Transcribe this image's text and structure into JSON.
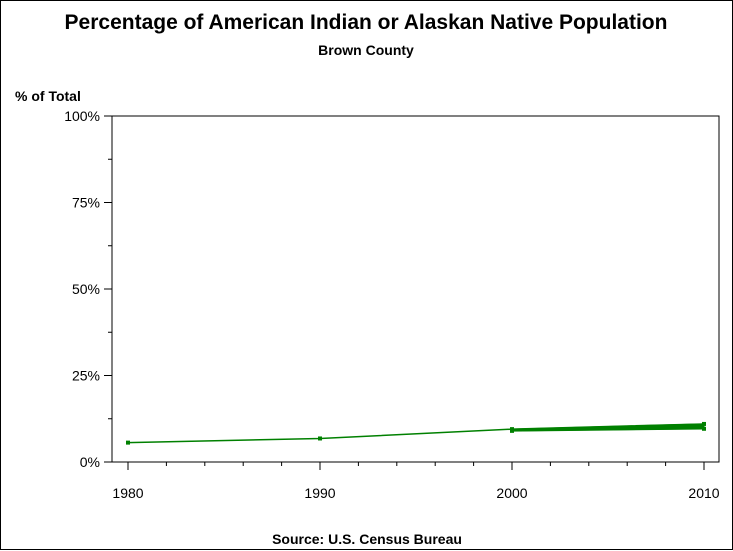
{
  "chart_data": {
    "type": "line",
    "title": "Percentage of American Indian or Alaskan Native Population",
    "subtitle": "Brown County",
    "ylabel": "% of Total",
    "xlabel": "",
    "source": "Source: U.S. Census Bureau",
    "xlim": [
      1980,
      2010
    ],
    "ylim": [
      0,
      100
    ],
    "x_ticks": [
      "1980",
      "1990",
      "2000",
      "2010"
    ],
    "y_ticks": [
      "0%",
      "25%",
      "50%",
      "75%",
      "100%"
    ],
    "grid": false,
    "legend": "none",
    "line_color": "#008000",
    "series": [
      {
        "x": [
          1980,
          1990,
          2000,
          2010
        ],
        "values": [
          5.6,
          6.8,
          9.5,
          11.0
        ]
      },
      {
        "x": [
          2000,
          2010
        ],
        "values": [
          9.0,
          9.6
        ]
      }
    ]
  }
}
